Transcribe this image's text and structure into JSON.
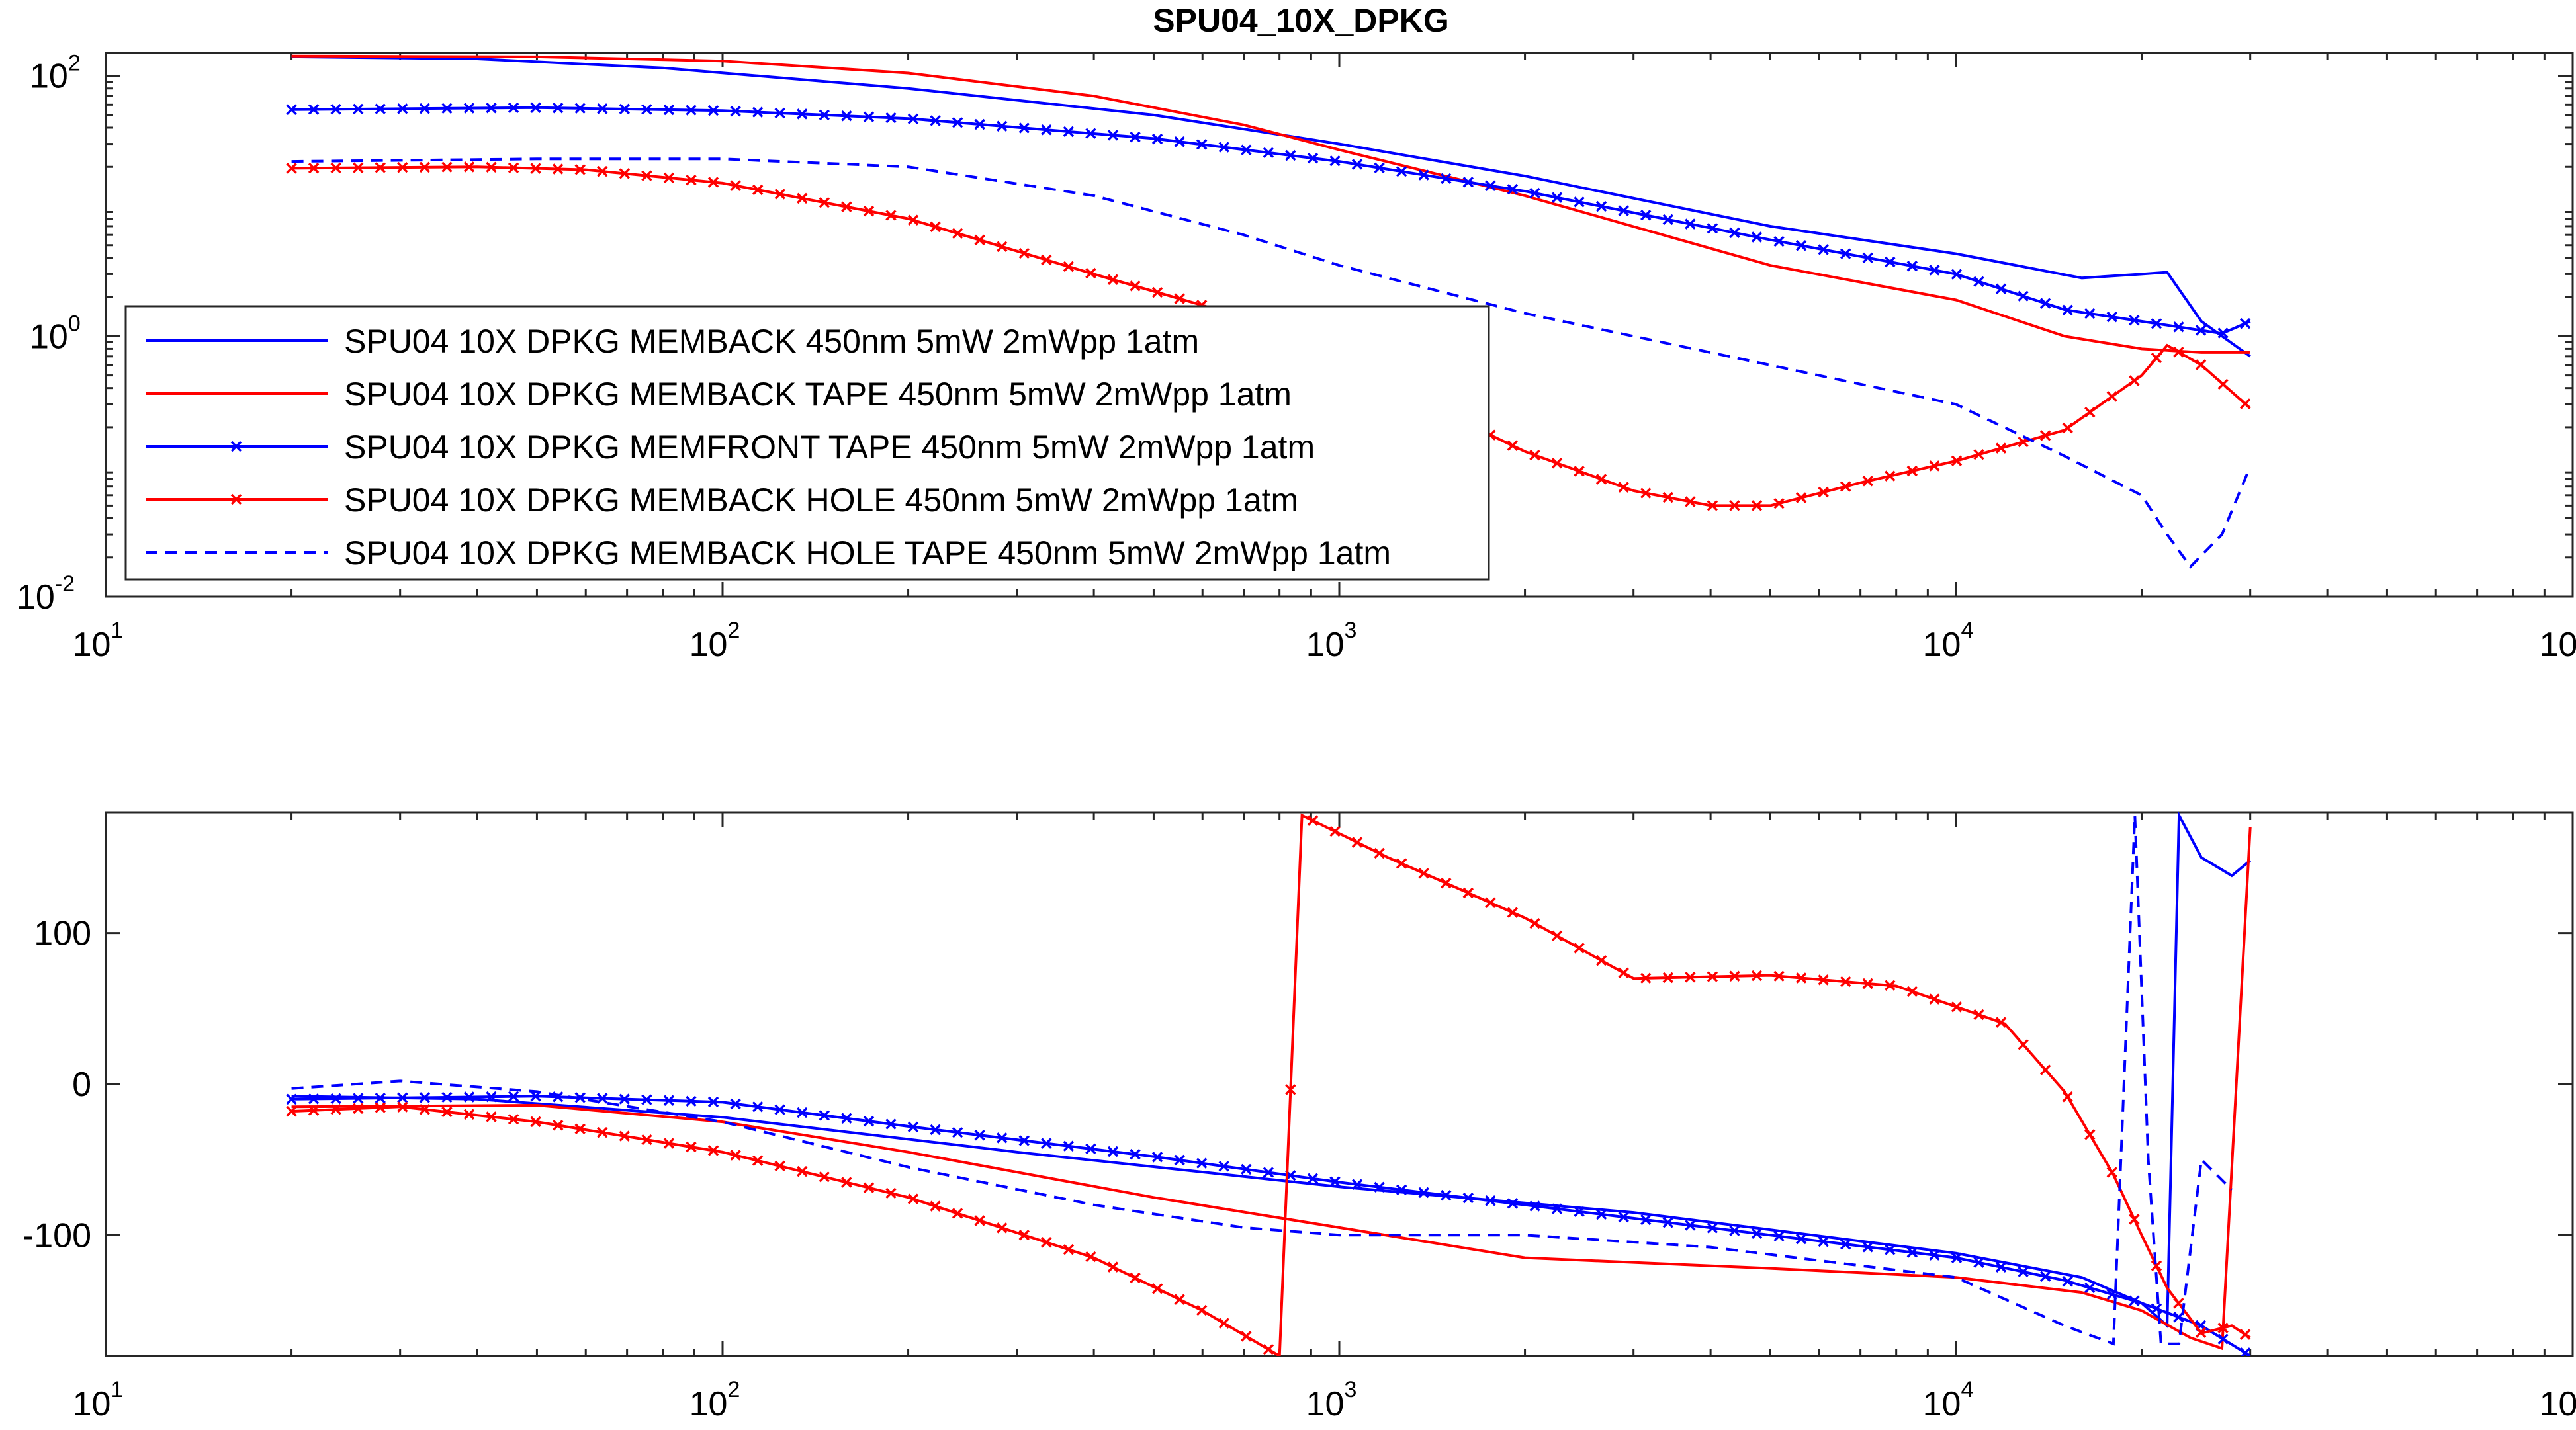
{
  "chart_data": [
    {
      "type": "line",
      "title": "SPU04_10X_DPKG",
      "xscale": "log",
      "yscale": "log",
      "xlim": [
        10,
        100000
      ],
      "ylim": [
        0.01,
        150
      ],
      "xticks": [
        10,
        100,
        1000,
        10000,
        100000
      ],
      "xtick_labels": [
        {
          "base": "10",
          "exp": "1"
        },
        {
          "base": "10",
          "exp": "2"
        },
        {
          "base": "10",
          "exp": "3"
        },
        {
          "base": "10",
          "exp": "4"
        },
        {
          "base": "10",
          "exp": "5"
        }
      ],
      "yticks": [
        0.01,
        1,
        100
      ],
      "ytick_labels": [
        {
          "base": "10",
          "exp": "-2"
        },
        {
          "base": "10",
          "exp": "0"
        },
        {
          "base": "10",
          "exp": "2"
        }
      ],
      "legend_position": "lower-left",
      "grid": false,
      "series": [
        {
          "name": "SPU04 10X DPKG MEMBACK 450nm 5mW 2mWpp 1atm",
          "color": "#0000ff",
          "style": "solid",
          "marker": "none",
          "points": [
            [
              20,
              140
            ],
            [
              40,
              135
            ],
            [
              80,
              115
            ],
            [
              200,
              80
            ],
            [
              500,
              50
            ],
            [
              1000,
              30
            ],
            [
              2000,
              17
            ],
            [
              5000,
              7
            ],
            [
              10000,
              4.3
            ],
            [
              16000,
              2.8
            ],
            [
              20000,
              3
            ],
            [
              22000,
              3.1
            ],
            [
              25000,
              1.3
            ],
            [
              30000,
              0.7
            ]
          ]
        },
        {
          "name": "SPU04 10X DPKG MEMBACK TAPE 450nm 5mW 2mWpp 1atm",
          "color": "#ff0000",
          "style": "solid",
          "marker": "none",
          "points": [
            [
              20,
              142
            ],
            [
              50,
              140
            ],
            [
              100,
              130
            ],
            [
              200,
              105
            ],
            [
              400,
              70
            ],
            [
              700,
              42
            ],
            [
              1000,
              27
            ],
            [
              2000,
              12
            ],
            [
              5000,
              3.5
            ],
            [
              10000,
              1.9
            ],
            [
              15000,
              1
            ],
            [
              20000,
              0.8
            ],
            [
              25000,
              0.75
            ],
            [
              30000,
              0.75
            ]
          ]
        },
        {
          "name": "SPU04 10X DPKG MEMFRONT TAPE 450nm 5mW 2mWpp 1atm",
          "color": "#0000ff",
          "style": "solid",
          "marker": "x",
          "points": [
            [
              20,
              55
            ],
            [
              50,
              57
            ],
            [
              100,
              54
            ],
            [
              200,
              47
            ],
            [
              500,
              33
            ],
            [
              1000,
              22
            ],
            [
              2000,
              13
            ],
            [
              5000,
              5.5
            ],
            [
              10000,
              3
            ],
            [
              15000,
              1.6
            ],
            [
              20000,
              1.3
            ],
            [
              27000,
              1.05
            ],
            [
              30000,
              1.3
            ]
          ]
        },
        {
          "name": "SPU04 10X DPKG MEMBACK HOLE 450nm 5mW 2mWpp 1atm",
          "color": "#ff0000",
          "style": "solid",
          "marker": "x",
          "points": [
            [
              20,
              19.5
            ],
            [
              40,
              20
            ],
            [
              60,
              19
            ],
            [
              100,
              15
            ],
            [
              200,
              8
            ],
            [
              400,
              3
            ],
            [
              700,
              1.4
            ],
            [
              1000,
              0.6
            ],
            [
              1500,
              0.25
            ],
            [
              2000,
              0.13
            ],
            [
              3000,
              0.065
            ],
            [
              4000,
              0.05
            ],
            [
              5000,
              0.05
            ],
            [
              7000,
              0.075
            ],
            [
              10000,
              0.11
            ],
            [
              15000,
              0.19
            ],
            [
              20000,
              0.5
            ],
            [
              22000,
              0.85
            ],
            [
              25000,
              0.6
            ],
            [
              30000,
              0.28
            ]
          ]
        },
        {
          "name": "SPU04 10X DPKG MEMBACK HOLE TAPE 450nm 5mW 2mWpp 1atm",
          "color": "#0000ff",
          "style": "dashed",
          "marker": "none",
          "points": [
            [
              20,
              22
            ],
            [
              50,
              23
            ],
            [
              100,
              23
            ],
            [
              200,
              20
            ],
            [
              400,
              12
            ],
            [
              700,
              6
            ],
            [
              1000,
              3.5
            ],
            [
              2000,
              1.5
            ],
            [
              5000,
              0.6
            ],
            [
              10000,
              0.3
            ],
            [
              15000,
              0.12
            ],
            [
              20000,
              0.06
            ],
            [
              22000,
              0.03
            ],
            [
              24000,
              0.017
            ],
            [
              27000,
              0.03
            ],
            [
              30000,
              0.1
            ]
          ]
        }
      ]
    },
    {
      "type": "line",
      "xscale": "log",
      "xlim": [
        10,
        100000
      ],
      "ylim": [
        -180,
        180
      ],
      "xticks": [
        10,
        100,
        1000,
        10000,
        100000
      ],
      "xtick_labels": [
        {
          "base": "10",
          "exp": "1"
        },
        {
          "base": "10",
          "exp": "2"
        },
        {
          "base": "10",
          "exp": "3"
        },
        {
          "base": "10",
          "exp": "4"
        },
        {
          "base": "10",
          "exp": "5"
        }
      ],
      "yticks": [
        -100,
        0,
        100
      ],
      "ytick_labels": [
        "-100",
        "0",
        "100"
      ],
      "grid": false,
      "series": [
        {
          "color": "#0000ff",
          "style": "solid",
          "marker": "none",
          "points": [
            [
              20,
              -8
            ],
            [
              40,
              -10
            ],
            [
              100,
              -22
            ],
            [
              300,
              -45
            ],
            [
              1000,
              -68
            ],
            [
              3000,
              -85
            ],
            [
              10000,
              -112
            ],
            [
              16000,
              -128
            ],
            [
              20000,
              -145
            ],
            [
              22000,
              -160
            ],
            [
              23000,
              178
            ],
            [
              25000,
              150
            ],
            [
              28000,
              138
            ],
            [
              30000,
              148
            ]
          ]
        },
        {
          "color": "#ff0000",
          "style": "solid",
          "marker": "none",
          "points": [
            [
              20,
              -15
            ],
            [
              50,
              -14
            ],
            [
              100,
              -25
            ],
            [
              200,
              -45
            ],
            [
              500,
              -75
            ],
            [
              1000,
              -95
            ],
            [
              2000,
              -115
            ],
            [
              5000,
              -122
            ],
            [
              10000,
              -128
            ],
            [
              16000,
              -138
            ],
            [
              20000,
              -150
            ],
            [
              24000,
              -168
            ],
            [
              27000,
              -175
            ],
            [
              30000,
              170
            ]
          ]
        },
        {
          "color": "#0000ff",
          "style": "solid",
          "marker": "x",
          "points": [
            [
              20,
              -10
            ],
            [
              50,
              -8
            ],
            [
              100,
              -12
            ],
            [
              200,
              -28
            ],
            [
              500,
              -48
            ],
            [
              1000,
              -65
            ],
            [
              2000,
              -80
            ],
            [
              5000,
              -100
            ],
            [
              10000,
              -115
            ],
            [
              15000,
              -130
            ],
            [
              20000,
              -145
            ],
            [
              25000,
              -160
            ],
            [
              30000,
              -180
            ]
          ]
        },
        {
          "color": "#ff0000",
          "style": "solid",
          "marker": "x",
          "points": [
            [
              20,
              -18
            ],
            [
              30,
              -15
            ],
            [
              50,
              -25
            ],
            [
              100,
              -45
            ],
            [
              200,
              -75
            ],
            [
              400,
              -115
            ],
            [
              600,
              -150
            ],
            [
              800,
              -180
            ],
            [
              870,
              178
            ],
            [
              1200,
              150
            ],
            [
              2000,
              110
            ],
            [
              3000,
              70
            ],
            [
              5000,
              72
            ],
            [
              8000,
              65
            ],
            [
              12000,
              40
            ],
            [
              15000,
              -5
            ],
            [
              18000,
              -60
            ],
            [
              20000,
              -100
            ],
            [
              22000,
              -135
            ],
            [
              25000,
              -165
            ],
            [
              28000,
              -160
            ],
            [
              30000,
              -168
            ]
          ]
        },
        {
          "color": "#0000ff",
          "style": "dashed",
          "marker": "none",
          "points": [
            [
              20,
              -3
            ],
            [
              30,
              2
            ],
            [
              50,
              -5
            ],
            [
              100,
              -25
            ],
            [
              200,
              -55
            ],
            [
              400,
              -80
            ],
            [
              700,
              -95
            ],
            [
              1000,
              -100
            ],
            [
              2000,
              -100
            ],
            [
              4000,
              -108
            ],
            [
              10000,
              -128
            ],
            [
              15000,
              -160
            ],
            [
              18000,
              -172
            ],
            [
              19500,
              178
            ],
            [
              20500,
              -50
            ],
            [
              21500,
              -172
            ],
            [
              23000,
              -172
            ],
            [
              25000,
              -50
            ],
            [
              28000,
              -70
            ]
          ]
        }
      ]
    }
  ]
}
